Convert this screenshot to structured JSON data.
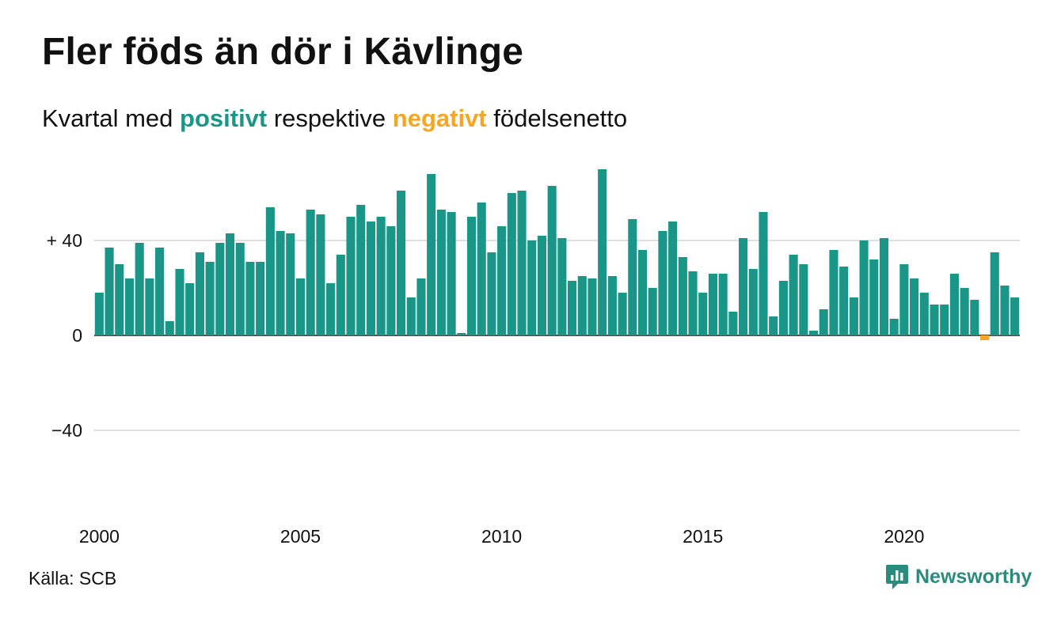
{
  "header": {
    "title": "Fler föds än dör i Kävlinge",
    "subtitle_prefix": "Kvartal med ",
    "subtitle_positive": "positivt",
    "subtitle_middle": " respektive ",
    "subtitle_negative": "negativt",
    "subtitle_suffix": " födelsenetto"
  },
  "footer": {
    "source": "Källa: SCB",
    "brand": "Newsworthy",
    "brand_icon": "newsworthy-logo-icon"
  },
  "colors": {
    "positive": "#1a9688",
    "negative": "#f5a623",
    "grid": "#e0e0e0",
    "zero_line": "#111111",
    "text": "#111111",
    "brand": "#2d8b7e"
  },
  "chart_data": {
    "type": "bar",
    "x_start_year": 2000,
    "periods_per_year": 4,
    "values": [
      18,
      37,
      30,
      24,
      39,
      24,
      37,
      6,
      28,
      22,
      35,
      31,
      39,
      43,
      39,
      31,
      31,
      54,
      44,
      43,
      24,
      53,
      51,
      22,
      34,
      50,
      55,
      48,
      50,
      46,
      61,
      16,
      24,
      68,
      53,
      52,
      1,
      50,
      56,
      35,
      46,
      60,
      61,
      40,
      42,
      63,
      41,
      23,
      25,
      24,
      70,
      25,
      18,
      49,
      36,
      20,
      44,
      48,
      33,
      27,
      18,
      26,
      26,
      10,
      41,
      28,
      52,
      8,
      23,
      34,
      30,
      2,
      11,
      36,
      29,
      16,
      40,
      32,
      41,
      7,
      30,
      24,
      18,
      13,
      13,
      26,
      20,
      15,
      -2,
      35,
      21,
      16
    ],
    "ylim": [
      -80,
      80
    ],
    "yticks": [
      40,
      0,
      -40
    ],
    "ytick_labels": [
      "+ 40",
      "0",
      "−40"
    ],
    "xticks": [
      2000,
      2005,
      2010,
      2015,
      2020
    ],
    "xtick_labels": [
      "2000",
      "2005",
      "2010",
      "2015",
      "2020"
    ],
    "grid": true,
    "legend": "none"
  }
}
